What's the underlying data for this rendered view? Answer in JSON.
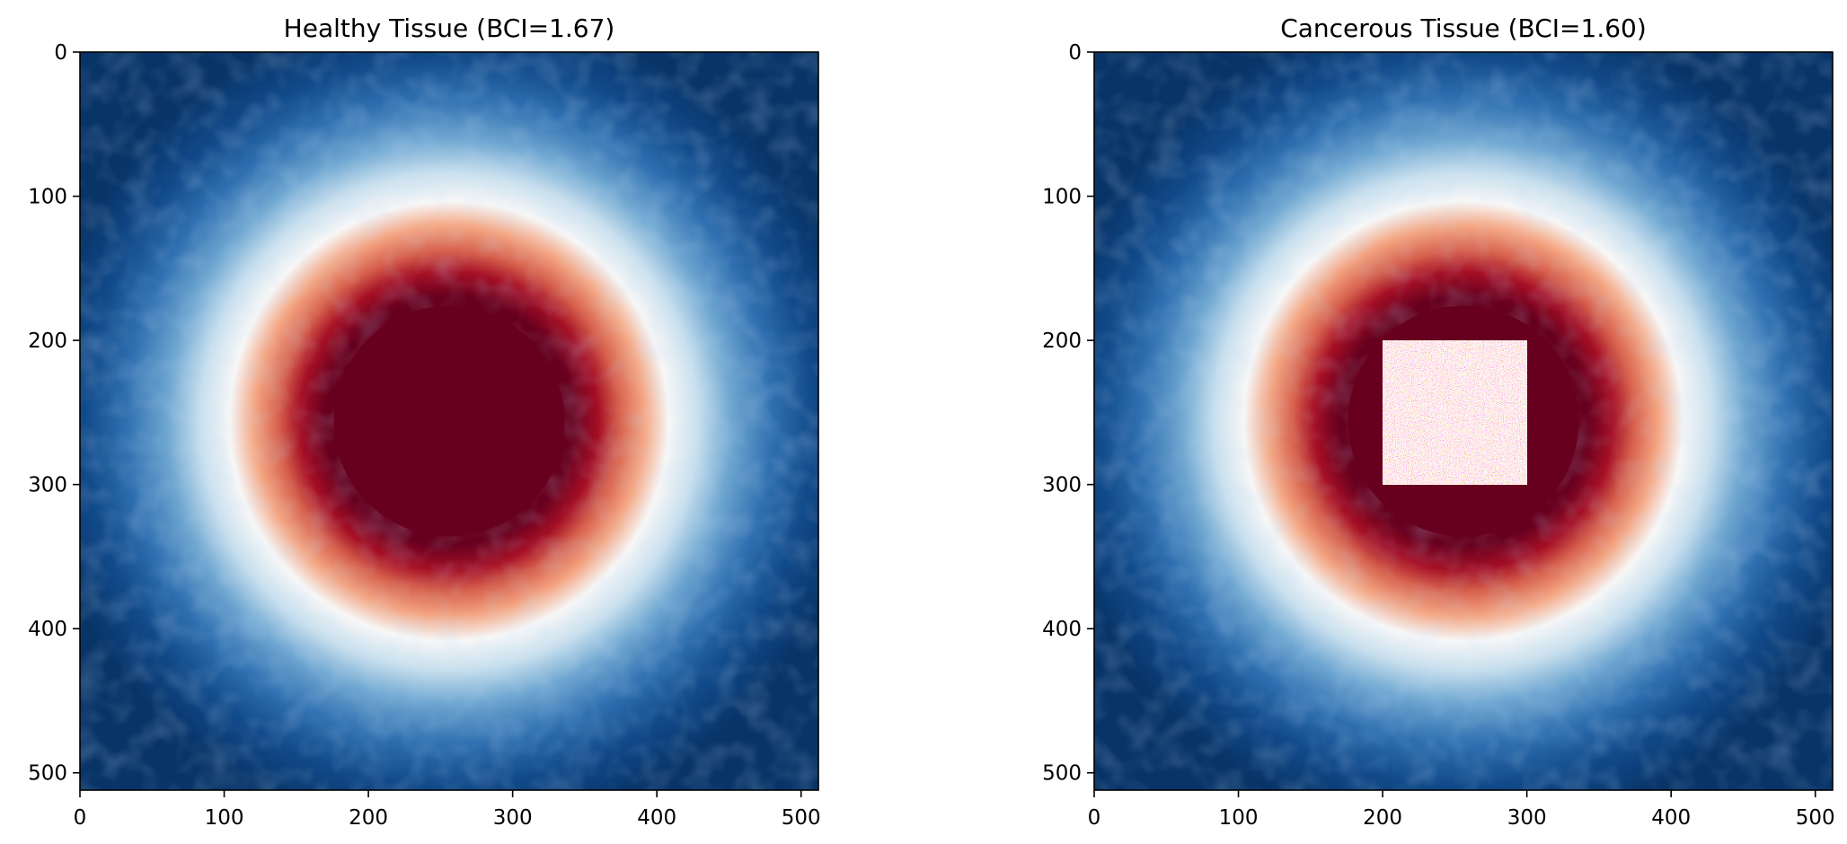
{
  "chart_data": [
    {
      "type": "heatmap",
      "title": "Healthy Tissue (BCI=1.67)",
      "xlabel": "",
      "ylabel": "",
      "shape": [
        512,
        512
      ],
      "xlim": [
        0,
        512
      ],
      "ylim": [
        512,
        0
      ],
      "xticks": [
        0,
        100,
        200,
        300,
        400,
        500
      ],
      "yticks": [
        0,
        100,
        200,
        300,
        400,
        500
      ],
      "colormap": "RdBu_r",
      "pattern": {
        "kind": "radial",
        "center": [
          256,
          256
        ],
        "saturated_core_radius": 80,
        "red_ring_radius": 105,
        "white_ring_radius": 135,
        "falloff_radius": 230,
        "background": "dark blue",
        "noise": "low"
      },
      "grid": false
    },
    {
      "type": "heatmap",
      "title": "Cancerous Tissue (BCI=1.60)",
      "xlabel": "",
      "ylabel": "",
      "shape": [
        512,
        512
      ],
      "xlim": [
        0,
        512
      ],
      "ylim": [
        512,
        0
      ],
      "xticks": [
        0,
        100,
        200,
        300,
        400,
        500
      ],
      "yticks": [
        0,
        100,
        200,
        300,
        400,
        500
      ],
      "colormap": "RdBu_r",
      "pattern": {
        "kind": "radial",
        "center": [
          256,
          256
        ],
        "saturated_core_radius": 80,
        "red_ring_radius": 105,
        "white_ring_radius": 135,
        "falloff_radius": 230,
        "background": "dark blue",
        "noise": "low"
      },
      "noise_patch": {
        "x_range": [
          200,
          300
        ],
        "y_range": [
          200,
          300
        ],
        "description": "random high-frequency noise"
      },
      "grid": false
    }
  ],
  "colors": {
    "deep_red": "#67001f",
    "red": "#b2182b",
    "light_red": "#f4a582",
    "white": "#f7f7f7",
    "light_blue": "#92c5de",
    "blue": "#2166ac",
    "dark_blue": "#083468"
  }
}
